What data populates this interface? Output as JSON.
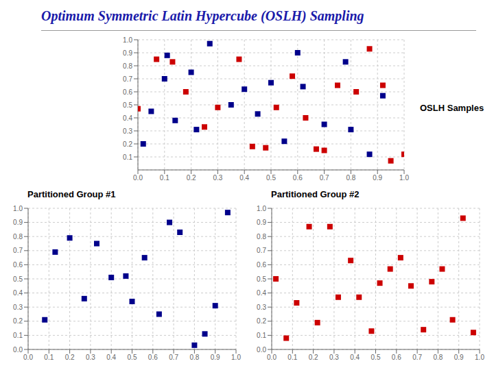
{
  "title": "Optimum Symmetric Latin Hypercube (OSLH) Sampling",
  "chart_data": [
    {
      "type": "scatter",
      "title": "OSLH Samples",
      "grid": true,
      "xlim": [
        0,
        1
      ],
      "ylim": [
        0,
        1
      ],
      "xticks": [
        {
          "value": 0,
          "label": "0.0"
        },
        0.1,
        0.2,
        0.3,
        0.4,
        0.5,
        0.6,
        0.7,
        0.8,
        0.9,
        {
          "value": 1,
          "label": "1.0"
        }
      ],
      "yticks": [
        0.1,
        0.2,
        0.3,
        0.4,
        0.5,
        0.6,
        0.7,
        0.8,
        0.9,
        {
          "value": 1,
          "label": "1.0"
        }
      ],
      "series": [
        {
          "color": "#00008B",
          "marker": "square",
          "x": [
            0.02,
            0.05,
            0.1,
            0.11,
            0.14,
            0.2,
            0.22,
            0.27,
            0.35,
            0.4,
            0.45,
            0.5,
            0.55,
            0.6,
            0.62,
            0.7,
            0.78,
            0.8,
            0.87,
            0.92
          ],
          "values": [
            0.2,
            0.45,
            0.7,
            0.88,
            0.38,
            0.75,
            0.31,
            0.97,
            0.5,
            0.62,
            0.43,
            0.67,
            0.22,
            0.9,
            0.64,
            0.35,
            0.83,
            0.31,
            0.12,
            0.57
          ]
        },
        {
          "color": "#cc0000",
          "marker": "square",
          "x": [
            0,
            0.07,
            0.13,
            0.18,
            0.25,
            0.3,
            0.38,
            0.43,
            0.48,
            0.52,
            0.58,
            0.63,
            0.67,
            0.7,
            0.75,
            0.82,
            0.87,
            0.92,
            0.95,
            1
          ],
          "values": [
            0.47,
            0.85,
            0.83,
            0.6,
            0.33,
            0.48,
            0.85,
            0.18,
            0.17,
            0.48,
            0.72,
            0.4,
            0.16,
            0.15,
            0.65,
            0.6,
            0.93,
            0.65,
            0.07,
            0.12
          ]
        }
      ]
    },
    {
      "type": "scatter",
      "title": "Partitioned Group #1",
      "grid": true,
      "xlim": [
        0,
        1
      ],
      "ylim": [
        0,
        1
      ],
      "xticks": [
        {
          "value": 0,
          "label": "0.0"
        },
        0.1,
        0.2,
        0.3,
        0.4,
        0.5,
        0.6,
        0.7,
        0.8,
        0.9,
        {
          "value": 1,
          "label": "1.0"
        }
      ],
      "yticks": [
        {
          "value": 0,
          "label": "0.0"
        },
        0.1,
        0.2,
        0.3,
        0.4,
        0.5,
        0.6,
        0.7,
        0.8,
        0.9,
        {
          "value": 1,
          "label": "1.0"
        }
      ],
      "series": [
        {
          "color": "#00008B",
          "marker": "square",
          "x": [
            0.08,
            0.13,
            0.2,
            0.27,
            0.33,
            0.4,
            0.47,
            0.5,
            0.56,
            0.63,
            0.68,
            0.73,
            0.8,
            0.85,
            0.9,
            0.96
          ],
          "values": [
            0.21,
            0.69,
            0.79,
            0.36,
            0.75,
            0.51,
            0.52,
            0.34,
            0.65,
            0.25,
            0.9,
            0.83,
            0.03,
            0.11,
            0.31,
            0.97
          ]
        }
      ]
    },
    {
      "type": "scatter",
      "title": "Partitioned Group #2",
      "grid": true,
      "xlim": [
        0,
        1
      ],
      "ylim": [
        0,
        1
      ],
      "xticks": [
        {
          "value": 0,
          "label": "0.0"
        },
        0.1,
        0.2,
        0.3,
        0.4,
        0.5,
        0.6,
        0.7,
        0.8,
        0.9,
        {
          "value": 1,
          "label": "1.0"
        }
      ],
      "yticks": [
        {
          "value": 0,
          "label": "0.0"
        },
        0.1,
        0.2,
        0.3,
        0.4,
        0.5,
        0.6,
        0.7,
        0.8,
        0.9,
        {
          "value": 1,
          "label": "1.0"
        }
      ],
      "series": [
        {
          "color": "#cc0000",
          "marker": "square",
          "x": [
            0.02,
            0.07,
            0.12,
            0.18,
            0.22,
            0.28,
            0.32,
            0.38,
            0.42,
            0.48,
            0.52,
            0.57,
            0.62,
            0.67,
            0.73,
            0.77,
            0.82,
            0.87,
            0.92,
            0.97
          ],
          "values": [
            0.5,
            0.08,
            0.33,
            0.87,
            0.19,
            0.87,
            0.37,
            0.63,
            0.37,
            0.13,
            0.47,
            0.57,
            0.65,
            0.45,
            0.14,
            0.48,
            0.57,
            0.21,
            0.93,
            0.12
          ]
        }
      ]
    }
  ]
}
